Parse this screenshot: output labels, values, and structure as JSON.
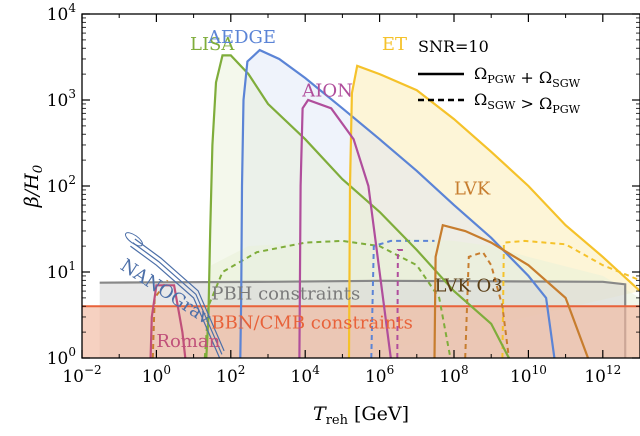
{
  "chart_data": {
    "type": "line",
    "xlabel": "T_reh [GeV]",
    "ylabel": "β/H_0",
    "x_scale": "log",
    "y_scale": "log",
    "xlim": [
      0.01,
      10000000000000
    ],
    "ylim": [
      1,
      10000
    ],
    "x_ticks": [
      {
        "value": 0.01,
        "base": "10",
        "exp": "−2"
      },
      {
        "value": 1,
        "base": "10",
        "exp": "0"
      },
      {
        "value": 100,
        "base": "10",
        "exp": "2"
      },
      {
        "value": 10000,
        "base": "10",
        "exp": "4"
      },
      {
        "value": 1000000,
        "base": "10",
        "exp": "6"
      },
      {
        "value": 100000000,
        "base": "10",
        "exp": "8"
      },
      {
        "value": 10000000000,
        "base": "10",
        "exp": "10"
      },
      {
        "value": 1000000000000,
        "base": "10",
        "exp": "12"
      }
    ],
    "y_ticks": [
      {
        "value": 1,
        "base": "10",
        "exp": "0"
      },
      {
        "value": 10,
        "base": "10",
        "exp": "1"
      },
      {
        "value": 100,
        "base": "10",
        "exp": "2"
      },
      {
        "value": 1000,
        "base": "10",
        "exp": "3"
      },
      {
        "value": 10000,
        "base": "10",
        "exp": "4"
      }
    ],
    "legend": {
      "title": "SNR=10",
      "placement": "top-right",
      "entries": [
        {
          "style": "solid",
          "label": "Ω_PGW + Ω_SGW"
        },
        {
          "style": "dashed",
          "label": "Ω_SGW > Ω_PGW"
        }
      ]
    },
    "constraints": [
      {
        "name": "PBH constraints",
        "color": "#888888",
        "fill": "#d9d9d9",
        "boundary": [
          [
            0.03,
            7.5
          ],
          [
            1,
            7.6
          ],
          [
            1000,
            7.7
          ],
          [
            1000000,
            7.9
          ],
          [
            1000000000000,
            7.7
          ],
          [
            4000000000000,
            7.2
          ]
        ]
      },
      {
        "name": "BBN/CMB constraints",
        "color": "#e8623a",
        "fill": "#f1b9a0",
        "beta_max": 4.0
      }
    ],
    "series": [
      {
        "name": "LISA",
        "color": "#7fad3b",
        "style": "solid",
        "points": [
          [
            22,
            1
          ],
          [
            25,
            3
          ],
          [
            28,
            30
          ],
          [
            32,
            300
          ],
          [
            40,
            1600
          ],
          [
            60,
            3300
          ],
          [
            100,
            3300
          ],
          [
            300,
            2000
          ],
          [
            1000,
            900
          ],
          [
            10000,
            350
          ],
          [
            100000,
            120
          ],
          [
            1000000,
            50
          ],
          [
            10000000,
            18
          ],
          [
            100000000,
            6
          ],
          [
            1000000000,
            2.5
          ],
          [
            3000000000,
            1
          ]
        ]
      },
      {
        "name": "AEDGE",
        "color": "#5b84d6",
        "style": "solid",
        "points": [
          [
            180,
            1
          ],
          [
            190,
            5
          ],
          [
            200,
            100
          ],
          [
            220,
            1000
          ],
          [
            280,
            2800
          ],
          [
            600,
            3800
          ],
          [
            2000,
            3000
          ],
          [
            10000,
            1800
          ],
          [
            100000,
            800
          ],
          [
            1000000,
            350
          ],
          [
            10000000,
            150
          ],
          [
            100000000,
            60
          ],
          [
            1000000000,
            25
          ],
          [
            10000000000,
            9
          ],
          [
            30000000000,
            5
          ],
          [
            50000000000,
            1
          ]
        ]
      },
      {
        "name": "ET",
        "color": "#f5c22a",
        "style": "solid",
        "points": [
          [
            150000,
            1
          ],
          [
            160000,
            100
          ],
          [
            180000,
            1200
          ],
          [
            250000,
            2500
          ],
          [
            1000000,
            2000
          ],
          [
            10000000,
            1300
          ],
          [
            100000000,
            600
          ],
          [
            1000000000,
            250
          ],
          [
            10000000000,
            100
          ],
          [
            100000000000,
            35
          ],
          [
            1000000000000,
            15
          ],
          [
            10000000000000,
            6
          ]
        ]
      },
      {
        "name": "AION",
        "color": "#b04e9c",
        "style": "solid",
        "points": [
          [
            7000,
            1
          ],
          [
            7500,
            100
          ],
          [
            8500,
            800
          ],
          [
            12000,
            1000
          ],
          [
            50000,
            800
          ],
          [
            200000,
            350
          ],
          [
            500000,
            100
          ],
          [
            1000000,
            10
          ],
          [
            2000000,
            1
          ]
        ]
      },
      {
        "name": "LVK",
        "color": "#c77d2e",
        "style": "solid",
        "points": [
          [
            30000000,
            1
          ],
          [
            32000000,
            15
          ],
          [
            50000000,
            35
          ],
          [
            200000000,
            30
          ],
          [
            1000000000,
            22
          ],
          [
            10000000000,
            12
          ],
          [
            100000000000,
            5
          ],
          [
            400000000000,
            1
          ]
        ]
      },
      {
        "name": "NANOGrav",
        "color": "#4c6fa8",
        "style": "contour",
        "points": [
          [
            0.2,
            20
          ],
          [
            1,
            12
          ],
          [
            10,
            5
          ],
          [
            50,
            1
          ]
        ]
      },
      {
        "name": "Roman",
        "color": "#c0507a",
        "style": "solid",
        "points": [
          [
            0.7,
            1
          ],
          [
            0.75,
            3
          ],
          [
            1,
            7
          ],
          [
            3,
            7
          ],
          [
            5,
            2
          ],
          [
            6,
            1
          ]
        ]
      }
    ],
    "annotations": [
      "LVK O3",
      "PBH constraints",
      "BBN/CMB constraints"
    ]
  }
}
